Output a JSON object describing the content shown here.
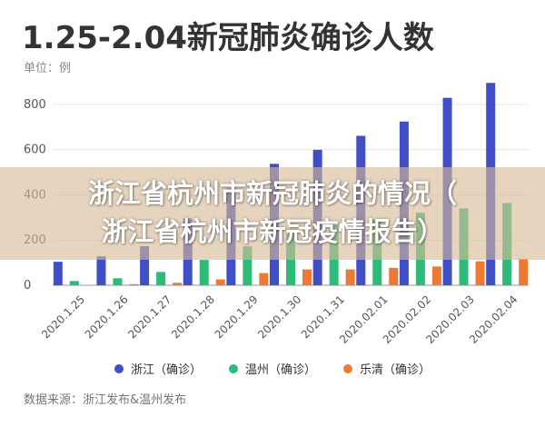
{
  "header": {
    "title": "1.25-2.04新冠肺炎确诊人数",
    "unit": "单位：例"
  },
  "overlay": {
    "line1": "浙江省杭州市新冠肺炎的情况（",
    "line2": "浙江省杭州市新冠疫情报告）"
  },
  "footer": {
    "source": "数据来源：浙江发布&温州发布"
  },
  "colors": {
    "zhejiang": "#3f4fc8",
    "wenzhou": "#2dbb7a",
    "yueqing": "#ec7a35"
  },
  "chart_data": {
    "type": "bar",
    "title": "1.25-2.04新冠肺炎确诊人数",
    "ylabel": "单位：例",
    "ylim": [
      0,
      900
    ],
    "yticks": [
      0,
      200,
      400,
      600,
      800
    ],
    "grid": true,
    "legend_position": "bottom",
    "categories": [
      "2020.1.25",
      "2020.1.26",
      "2020.1.27",
      "2020.1.28",
      "2020.1.29",
      "2020.1.30",
      "2020.1.31",
      "2020.02.01",
      "2020.02.02",
      "2020.02.03",
      "2020.02.04"
    ],
    "series": [
      {
        "name": "浙江（确诊）",
        "color": "#3f4fc8",
        "values": [
          104,
          128,
          173,
          296,
          428,
          537,
          599,
          661,
          724,
          829,
          895
        ]
      },
      {
        "name": "温州（确诊）",
        "color": "#2dbb7a",
        "values": [
          19,
          31,
          59,
          112,
          172,
          227,
          265,
          291,
          321,
          340,
          364
        ]
      },
      {
        "name": "乐清（确诊）",
        "color": "#ec7a35",
        "values": [
          0,
          5,
          11,
          26,
          54,
          70,
          70,
          77,
          83,
          106,
          117
        ]
      }
    ]
  }
}
